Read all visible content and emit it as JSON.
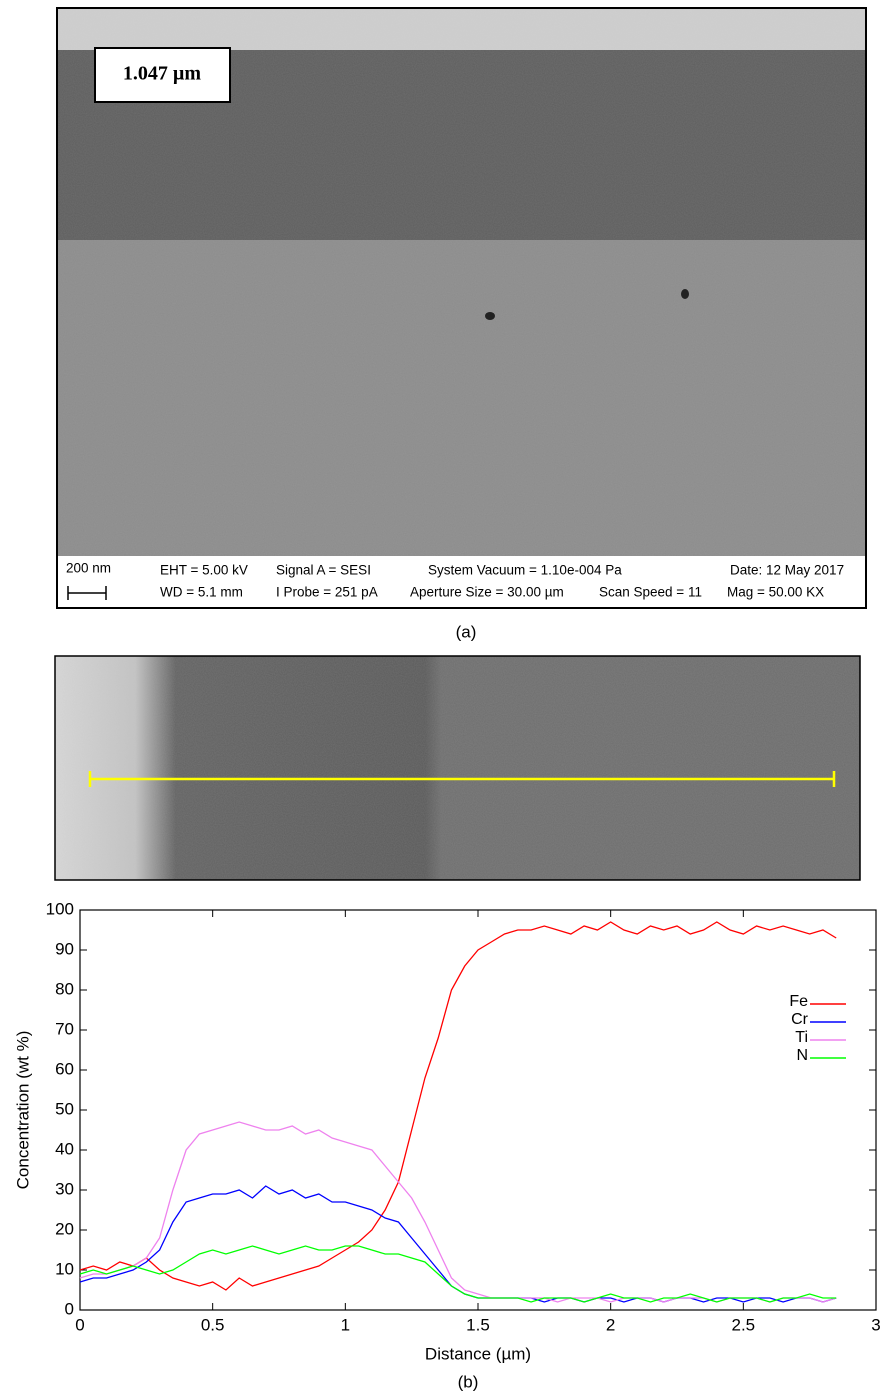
{
  "micrograph": {
    "thickness_label": "1.047 µm",
    "scale_bar": "200 nm",
    "eht": "EHT = 5.00 kV",
    "wd": "WD = 5.1 mm",
    "signal": "Signal A = SESI",
    "probe": "I Probe = 251 pA",
    "vacuum": "System Vacuum = 1.10e-004 Pa",
    "aperture": "Aperture Size = 30.00 µm",
    "date": "Date: 12 May 2017",
    "scan_speed": "Scan Speed = 11",
    "mag": "Mag = 50.00 KX",
    "caption": "(a)"
  },
  "caption_b": "(b)",
  "chart_data": {
    "type": "line",
    "x_label": "Distance (µm)",
    "y_label": "Concentration (wt %)",
    "x": [
      0,
      0.05,
      0.1,
      0.15,
      0.2,
      0.25,
      0.3,
      0.35,
      0.4,
      0.45,
      0.5,
      0.55,
      0.6,
      0.65,
      0.7,
      0.75,
      0.8,
      0.85,
      0.9,
      0.95,
      1.0,
      1.05,
      1.1,
      1.15,
      1.2,
      1.25,
      1.3,
      1.35,
      1.4,
      1.45,
      1.5,
      1.55,
      1.6,
      1.65,
      1.7,
      1.75,
      1.8,
      1.85,
      1.9,
      1.95,
      2.0,
      2.05,
      2.1,
      2.15,
      2.2,
      2.25,
      2.3,
      2.35,
      2.4,
      2.45,
      2.5,
      2.55,
      2.6,
      2.65,
      2.7,
      2.75,
      2.8,
      2.85
    ],
    "series": [
      {
        "name": "Fe",
        "color": "#ff0000",
        "values": [
          10,
          11,
          10,
          12,
          11,
          13,
          10,
          8,
          7,
          6,
          7,
          5,
          8,
          6,
          7,
          8,
          9,
          10,
          11,
          13,
          15,
          17,
          20,
          25,
          32,
          45,
          58,
          68,
          80,
          86,
          90,
          92,
          94,
          95,
          95,
          96,
          95,
          94,
          96,
          95,
          97,
          95,
          94,
          96,
          95,
          96,
          94,
          95,
          97,
          95,
          94,
          96,
          95,
          96,
          95,
          94,
          95,
          93
        ]
      },
      {
        "name": "Cr",
        "color": "#0000ff",
        "values": [
          7,
          8,
          8,
          9,
          10,
          12,
          15,
          22,
          27,
          28,
          29,
          29,
          30,
          28,
          31,
          29,
          30,
          28,
          29,
          27,
          27,
          26,
          25,
          23,
          22,
          18,
          14,
          10,
          6,
          4,
          3,
          3,
          3,
          3,
          3,
          2,
          3,
          3,
          2,
          3,
          3,
          2,
          3,
          3,
          2,
          3,
          3,
          2,
          3,
          3,
          2,
          3,
          3,
          2,
          3,
          3,
          2,
          3
        ]
      },
      {
        "name": "Ti",
        "color": "#ee82ee",
        "values": [
          8,
          9,
          9,
          10,
          11,
          13,
          18,
          30,
          40,
          44,
          45,
          46,
          47,
          46,
          45,
          45,
          46,
          44,
          45,
          43,
          42,
          41,
          40,
          36,
          32,
          28,
          22,
          15,
          8,
          5,
          4,
          3,
          3,
          3,
          3,
          3,
          2,
          3,
          3,
          3,
          2,
          3,
          3,
          3,
          2,
          3,
          3,
          3,
          2,
          3,
          3,
          3,
          2,
          3,
          3,
          3,
          2,
          3
        ]
      },
      {
        "name": "N",
        "color": "#00ff00",
        "values": [
          9,
          10,
          9,
          10,
          11,
          10,
          9,
          10,
          12,
          14,
          15,
          14,
          15,
          16,
          15,
          14,
          15,
          16,
          15,
          15,
          16,
          16,
          15,
          14,
          14,
          13,
          12,
          9,
          6,
          4,
          3,
          3,
          3,
          3,
          2,
          3,
          3,
          3,
          2,
          3,
          4,
          3,
          3,
          2,
          3,
          3,
          4,
          3,
          2,
          3,
          3,
          3,
          2,
          3,
          3,
          4,
          3,
          3
        ]
      }
    ],
    "xlim": [
      0,
      3
    ],
    "ylim": [
      0,
      100
    ],
    "xticks": [
      0,
      0.5,
      1,
      1.5,
      2,
      2.5,
      3
    ],
    "yticks": [
      0,
      10,
      20,
      30,
      40,
      50,
      60,
      70,
      80,
      90,
      100
    ],
    "legend": "upper right"
  }
}
